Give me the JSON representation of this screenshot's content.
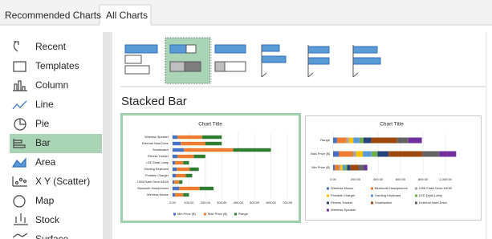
{
  "tabs": [
    "Recommended Charts",
    "All Charts"
  ],
  "chart_types": [
    "Recent",
    "Templates",
    "Column",
    "Line",
    "Pie",
    "Bar",
    "Area",
    "X Y (Scatter)",
    "Map",
    "Stock",
    "Surface"
  ],
  "selected_type": "Bar",
  "subtype_title": "Stacked Bar",
  "preview_data": {
    "categories": [
      "Wireless Mouse",
      "Bluetooth Headphones",
      "USB Flash Drive 64GB",
      "Portable Charger",
      "Gaming Keyboard",
      "LED Desk Lamp",
      "Fitness Tracker",
      "Smartwatch",
      "External Hard Drive",
      "Wireless Speaker"
    ],
    "category_colors": [
      "#4472c4",
      "#ed7d31",
      "#a5a5a5",
      "#ffc000",
      "#5b9bd5",
      "#70ad47",
      "#264478",
      "#9e480e",
      "#636363",
      "#7030a0"
    ],
    "series": [
      {
        "name": "Min Price ($)",
        "color": "#4472c4",
        "values": [
          15,
          40,
          10,
          20,
          25,
          15,
          30,
          70,
          50,
          30
        ]
      },
      {
        "name": "Max Price ($)",
        "color": "#ed7d31",
        "values": [
          50,
          125,
          30,
          60,
          80,
          50,
          100,
          300,
          150,
          150
        ]
      },
      {
        "name": "Range",
        "color": "#2e7d32",
        "values": [
          35,
          85,
          20,
          40,
          55,
          35,
          70,
          230,
          100,
          120
        ]
      }
    ]
  },
  "previews": [
    {
      "title": "Chart Title",
      "xlim": [
        0,
        700
      ],
      "xticks": [
        {
          "value": 0,
          "label": "0.00"
        },
        {
          "value": 100,
          "label": "100.00"
        },
        {
          "value": 200,
          "label": "200.00"
        },
        {
          "value": 300,
          "label": "300.00"
        },
        {
          "value": 400,
          "label": "400.00"
        },
        {
          "value": 500,
          "label": "500.00"
        },
        {
          "value": 600,
          "label": "600.00"
        },
        {
          "value": 700,
          "label": "700.00"
        }
      ]
    },
    {
      "title": "Chart Title",
      "xlim": [
        0,
        1200
      ],
      "xticks": [
        {
          "value": 0,
          "label": "0.00"
        },
        {
          "value": 200,
          "label": "200.00"
        },
        {
          "value": 400,
          "label": "400.00"
        },
        {
          "value": 600,
          "label": "600.00"
        },
        {
          "value": 800,
          "label": "800.00"
        },
        {
          "value": 1000,
          "label": "1,000.00"
        }
      ]
    }
  ]
}
